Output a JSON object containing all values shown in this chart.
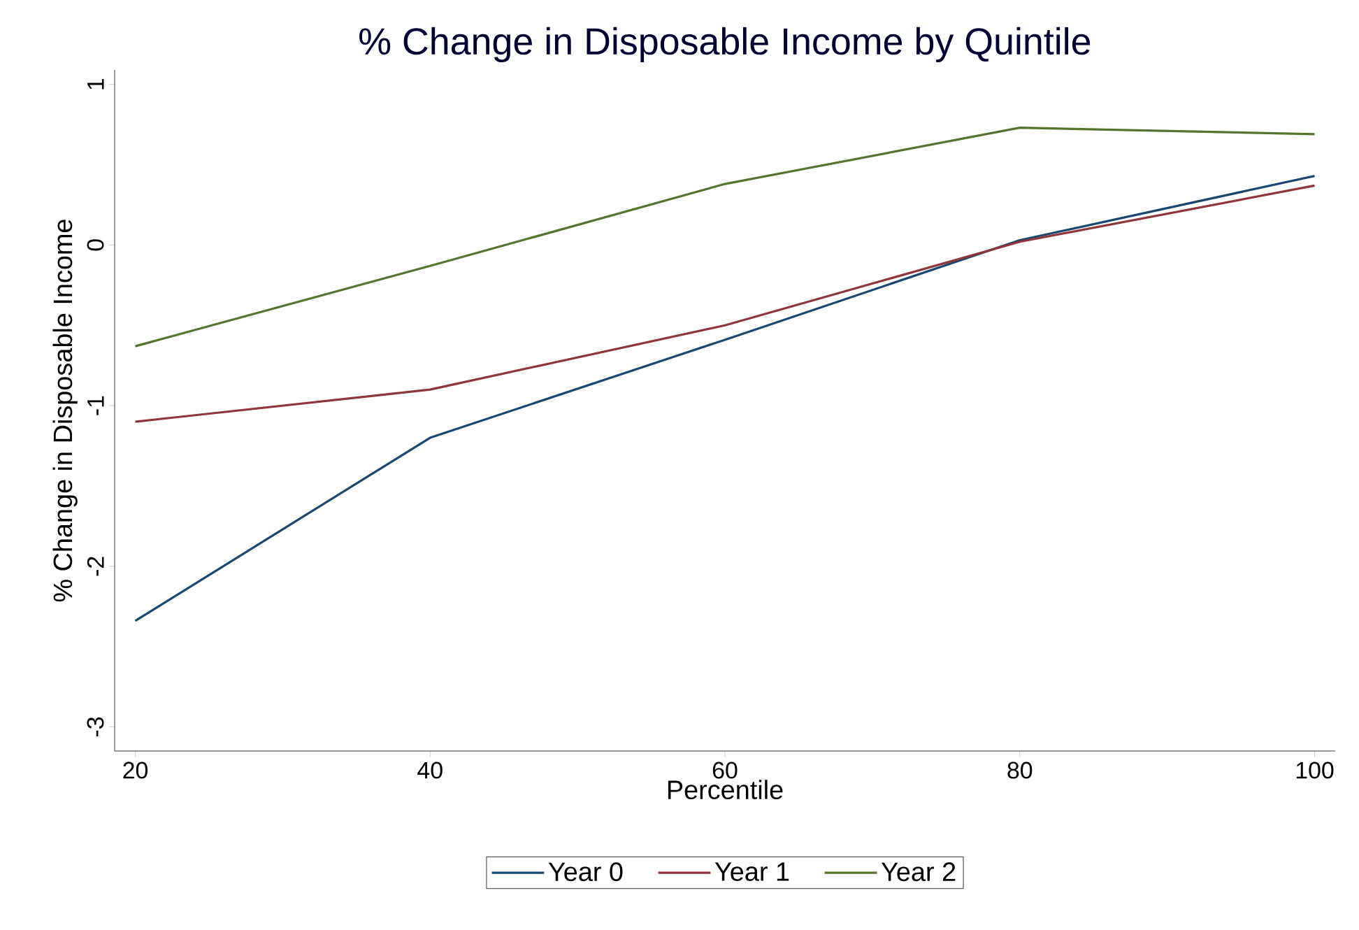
{
  "chart_data": {
    "type": "line",
    "title": "% Change in Disposable Income by Quintile",
    "xlabel": "Percentile",
    "ylabel": "% Change in Disposable Income",
    "x": [
      20,
      40,
      60,
      80,
      100
    ],
    "series": [
      {
        "name": "Year 0",
        "color": "#1a476f",
        "values": [
          -2.34,
          -1.2,
          -0.59,
          0.03,
          0.43
        ]
      },
      {
        "name": "Year 1",
        "color": "#90353b",
        "values": [
          -1.1,
          -0.9,
          -0.5,
          0.02,
          0.37
        ]
      },
      {
        "name": "Year 2",
        "color": "#55752f",
        "values": [
          -0.63,
          -0.13,
          0.38,
          0.73,
          0.69
        ]
      }
    ],
    "xlim": [
      18.6,
      101.4
    ],
    "ylim": [
      -3.15,
      1.09
    ],
    "xticks": [
      20,
      40,
      60,
      80,
      100
    ],
    "yticks": [
      -3,
      -2,
      -1,
      0,
      1
    ],
    "grid": false,
    "legend": "bottom",
    "marker": "none",
    "line_style": "solid"
  }
}
